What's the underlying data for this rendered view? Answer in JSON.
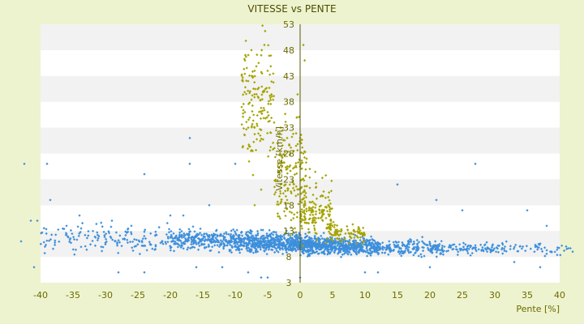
{
  "chart_data": {
    "type": "scatter",
    "title": "VITESSE vs PENTE",
    "xlabel": "Pente [%]",
    "ylabel": "Vitesse [km/h]",
    "xlim": [
      -40,
      40
    ],
    "ylim": [
      3,
      53
    ],
    "x_ticks": [
      "-40",
      "-35",
      "-30",
      "-25",
      "-20",
      "-15",
      "-10",
      "-5",
      "0",
      "5",
      "10",
      "15",
      "20",
      "25",
      "30",
      "35",
      "40"
    ],
    "y_ticks": [
      "3",
      "8",
      "13",
      "18",
      "23",
      "28",
      "33",
      "38",
      "43",
      "48",
      "53"
    ],
    "grid": "alternating horizontal bands (white / light grey)",
    "legend": "none",
    "colors": {
      "background": "#eef3cf",
      "plot_band_light": "#ffffff",
      "plot_band_dark": "#f2f2f2",
      "axis": "#5a5a00",
      "series_blue": "#3c8fdc",
      "series_olive": "#a3a300"
    },
    "series": [
      {
        "color": "#3c8fdc",
        "marker": "diamond",
        "description_points": [
          [
            -43,
            11
          ],
          [
            -42.5,
            26
          ],
          [
            -41.5,
            15
          ],
          [
            -41,
            6
          ],
          [
            -40.5,
            15
          ],
          [
            -39,
            26
          ],
          [
            -38.5,
            19
          ],
          [
            -36,
            14
          ],
          [
            -34,
            16
          ],
          [
            -31,
            12
          ],
          [
            -29,
            15
          ],
          [
            -28,
            5
          ],
          [
            -26,
            14
          ],
          [
            -24,
            24
          ],
          [
            -24,
            5
          ],
          [
            -20,
            16
          ],
          [
            -18,
            16
          ],
          [
            -17,
            31
          ],
          [
            -17,
            26
          ],
          [
            -16,
            6
          ],
          [
            -14,
            18
          ],
          [
            -12,
            6
          ],
          [
            -10,
            26
          ],
          [
            -8,
            5
          ],
          [
            -6,
            4
          ],
          [
            -5,
            4
          ],
          [
            0,
            4
          ],
          [
            10,
            5
          ],
          [
            12,
            5
          ],
          [
            15,
            22
          ],
          [
            20,
            6
          ],
          [
            21,
            19
          ],
          [
            25,
            17
          ],
          [
            27,
            26
          ],
          [
            33,
            7
          ],
          [
            35,
            17
          ],
          [
            37,
            6
          ],
          [
            38,
            14
          ],
          [
            41,
            10
          ],
          [
            42,
            9
          ]
        ],
        "density_bands": [
          {
            "x_range": [
              -40,
              -20
            ],
            "y_center": 11.5,
            "y_spread": 2.2,
            "count": 160
          },
          {
            "x_range": [
              -20,
              -10
            ],
            "y_center": 11.3,
            "y_spread": 1.6,
            "count": 280
          },
          {
            "x_range": [
              -10,
              0
            ],
            "y_center": 10.8,
            "y_spread": 1.6,
            "count": 520
          },
          {
            "x_range": [
              0,
              5
            ],
            "y_center": 10.3,
            "y_spread": 1.4,
            "count": 360
          },
          {
            "x_range": [
              5,
              12
            ],
            "y_center": 10.0,
            "y_spread": 1.3,
            "count": 320
          },
          {
            "x_range": [
              12,
              22
            ],
            "y_center": 9.8,
            "y_spread": 1.2,
            "count": 200
          },
          {
            "x_range": [
              22,
              32
            ],
            "y_center": 9.6,
            "y_spread": 1.0,
            "count": 100
          },
          {
            "x_range": [
              32,
              42
            ],
            "y_center": 9.5,
            "y_spread": 1.0,
            "count": 45
          }
        ]
      },
      {
        "color": "#a3a300",
        "marker": "diamond",
        "description_points": [
          [
            -8.5,
            46
          ],
          [
            -8,
            42
          ],
          [
            -7.5,
            48
          ],
          [
            -7,
            44
          ],
          [
            -6.5,
            39
          ],
          [
            -6,
            47
          ],
          [
            -5.5,
            49
          ],
          [
            -5,
            44
          ],
          [
            -5,
            36
          ],
          [
            -8.5,
            36
          ],
          [
            -8,
            33
          ],
          [
            -9,
            37
          ],
          [
            -4.5,
            32
          ],
          [
            -4,
            34
          ],
          [
            -3.5,
            30
          ],
          [
            -3,
            33
          ],
          [
            -2,
            31
          ],
          [
            -1.5,
            28
          ],
          [
            0.5,
            49
          ],
          [
            0.7,
            46
          ],
          [
            -0.5,
            35
          ],
          [
            0,
            31
          ],
          [
            0.5,
            28
          ],
          [
            1,
            27
          ],
          [
            1.5,
            25
          ],
          [
            2,
            20
          ],
          [
            3,
            17
          ],
          [
            3.5,
            15
          ],
          [
            4,
            15.5
          ],
          [
            5,
            14
          ],
          [
            6,
            13
          ],
          [
            7,
            12.5
          ],
          [
            -6,
            21
          ],
          [
            -7,
            18
          ],
          [
            -2,
            19
          ],
          [
            -3,
            22
          ]
        ],
        "density_bands": [
          {
            "x_range": [
              -9,
              -4
            ],
            "y_center": 38,
            "y_spread": 9,
            "count": 150
          },
          {
            "x_range": [
              -4,
              1
            ],
            "y_center": 24,
            "y_spread": 9,
            "count": 160
          },
          {
            "x_range": [
              0,
              5
            ],
            "y_center": 17,
            "y_spread": 5,
            "count": 150
          },
          {
            "x_range": [
              4,
              10
            ],
            "y_center": 12.5,
            "y_spread": 1.5,
            "count": 90
          }
        ]
      }
    ]
  }
}
